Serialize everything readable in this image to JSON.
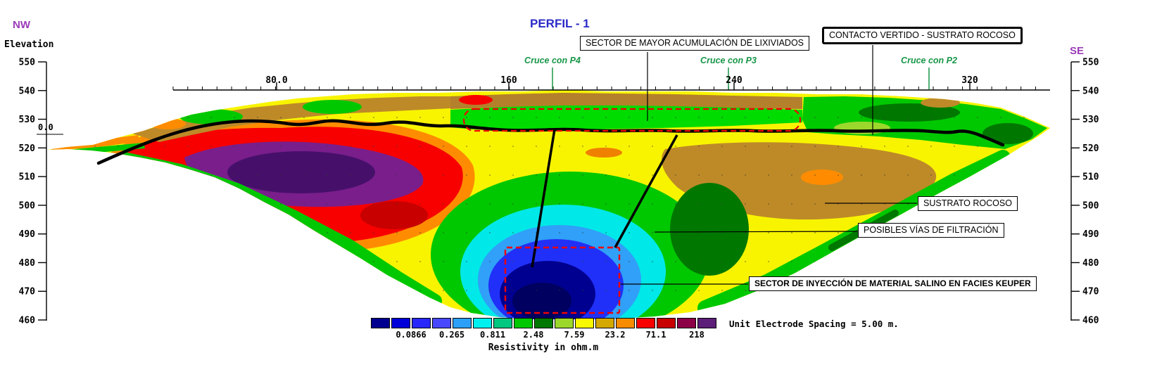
{
  "title": "PERFIL - 1",
  "corners": {
    "nw": "NW",
    "se": "SE"
  },
  "axes": {
    "elevation_label": "Elevation",
    "elev_ticks": [
      "550",
      "540",
      "530",
      "520",
      "510",
      "500",
      "490",
      "480",
      "470",
      "460"
    ],
    "distance_ticks": [
      "80.0",
      "160",
      "240",
      "320"
    ],
    "origin_label": "0.0"
  },
  "crossings": [
    "Cruce con P4",
    "Cruce con P3",
    "Cruce con P2"
  ],
  "annotations": {
    "leachate": "SECTOR DE MAYOR ACUMULACIÓN DE LIXIVIADOS",
    "contact": "CONTACTO VERTIDO - SUSTRATO ROCOSO",
    "bedrock": "SUSTRATO ROCOSO",
    "filtration": "POSIBLES VÍAS DE FILTRACIÓN",
    "injection": "SECTOR DE INYECCIÓN DE MATERIAL SALINO EN FACIES KEUPER"
  },
  "legend": {
    "values": [
      "0.0866",
      "0.265",
      "0.811",
      "2.48",
      "7.59",
      "23.2",
      "71.1",
      "218"
    ],
    "colors": [
      "#000090",
      "#0000D8",
      "#2828FC",
      "#4848FF",
      "#2CA0F8",
      "#00F0F0",
      "#00C880",
      "#00C800",
      "#007800",
      "#9CD82C",
      "#F8F800",
      "#D4A800",
      "#F88C00",
      "#F80000",
      "#C80000",
      "#8C0048",
      "#5C1E78"
    ],
    "unit_note": "Unit Electrode Spacing = 5.00 m.",
    "scale_label": "Resistivity in ohm.m"
  },
  "accent_colors": {
    "title_blue": "#2A2AC8",
    "corner_purple": "#9B3BB8",
    "crossing_green": "#189648",
    "marker_red": "#F00000"
  },
  "chart_data": {
    "type": "heatmap",
    "title": "PERFIL - 1",
    "orientation_start": "NW",
    "orientation_end": "SE",
    "x_start_m": 0,
    "x_ticks_m": [
      80,
      160,
      240,
      320
    ],
    "ylabel": "Elevation",
    "ylim": [
      460,
      550
    ],
    "electrode_spacing_m": 5,
    "colorbar": {
      "label": "Resistivity in ohm.m",
      "scale": "log",
      "boundary_values_ohm_m": [
        0.0866,
        0.265,
        0.811,
        2.48,
        7.59,
        23.2,
        71.1,
        218
      ],
      "colors_low_to_high": [
        "#000090",
        "#0000D8",
        "#2828FC",
        "#4848FF",
        "#2CA0F8",
        "#00F0F0",
        "#00C880",
        "#00C800",
        "#007800",
        "#9CD82C",
        "#F8F800",
        "#D4A800",
        "#F88C00",
        "#F80000",
        "#C80000",
        "#8C0048",
        "#5C1E78"
      ]
    },
    "profile_crossings": [
      {
        "label": "Cruce con P4",
        "x_m": 175
      },
      {
        "label": "Cruce con P3",
        "x_m": 236
      },
      {
        "label": "Cruce con P2",
        "x_m": 306
      }
    ],
    "zones": [
      {
        "name": "leachate-accumulation",
        "label": "SECTOR DE MAYOR ACUMULACIÓN DE LIXIVIADOS",
        "x_range_m": [
          140,
          262
        ],
        "elev_range_m": [
          527,
          536
        ],
        "resistivity_class": "low-moderate (green, ~2.5-7.6 ohm.m)"
      },
      {
        "name": "saline-injection-keuper",
        "label": "SECTOR DE INYECCIÓN DE MATERIAL SALINO EN FACIES KEUPER",
        "x_range_m": [
          155,
          200
        ],
        "elev_range_m": [
          460,
          488
        ],
        "resistivity_class": "very low (blue, <0.265 ohm.m)"
      },
      {
        "name": "high-resistivity-body",
        "x_range_m": [
          20,
          145
        ],
        "elev_range_m": [
          498,
          532
        ],
        "resistivity_class": "high (red-purple, >218 ohm.m)"
      },
      {
        "name": "bedrock",
        "label": "SUSTRATO ROCOSO",
        "x_range_m": [
          215,
          310
        ],
        "elev_range_m": [
          498,
          524
        ],
        "resistivity_class": "moderate-high (brown, ~23-71 ohm.m)"
      },
      {
        "name": "filtration-paths",
        "label": "POSIBLES VÍAS DE FILTRACIÓN",
        "x_range_m": [
          160,
          220
        ],
        "elev_range_m": [
          480,
          528
        ]
      },
      {
        "name": "waste-bedrock-contact",
        "label": "CONTACTO VERTIDO - SUSTRATO ROCOSO",
        "geometry": "black line following base of fill across section"
      }
    ]
  }
}
